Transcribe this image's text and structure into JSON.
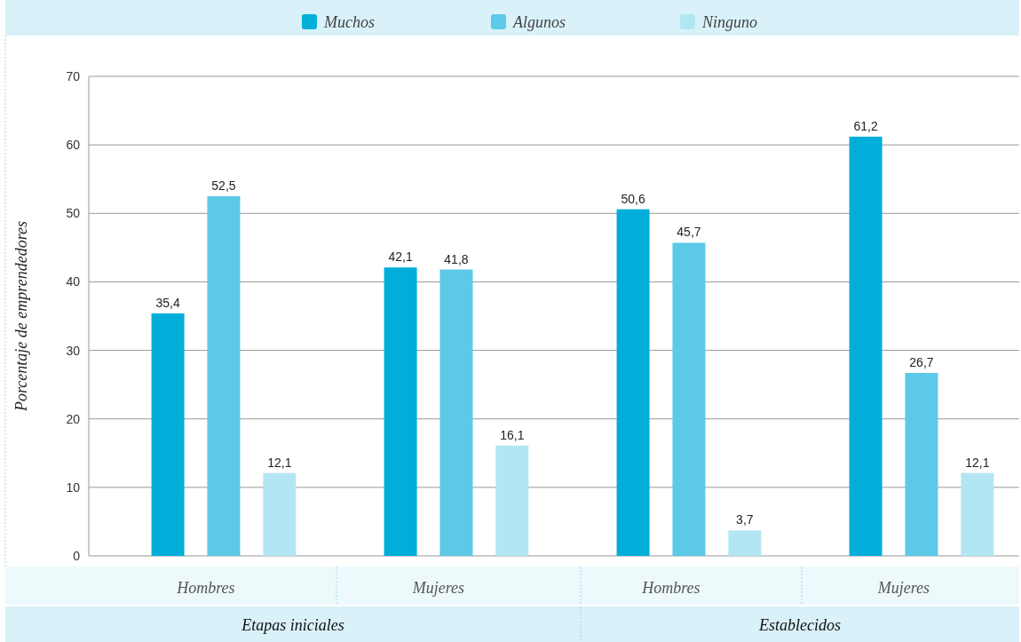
{
  "chart_data": {
    "type": "bar",
    "ylabel": "Porcentaje de emprendedores",
    "categories": [
      "Hombres",
      "Mujeres",
      "Hombres",
      "Mujeres"
    ],
    "series": [
      {
        "name": "Muchos",
        "color": "#00aed9",
        "values": [
          35.4,
          42.1,
          50.6,
          61.2
        ],
        "value_labels": [
          "35,4",
          "42,1",
          "50,6",
          "61,2"
        ]
      },
      {
        "name": "Algunos",
        "color": "#5bc9e7",
        "values": [
          52.5,
          41.8,
          45.7,
          26.7
        ],
        "value_labels": [
          "52,5",
          "41,8",
          "45,7",
          "26,7"
        ]
      },
      {
        "name": "Ninguno",
        "color": "#b3e6f3",
        "values": [
          12.1,
          16.1,
          3.7,
          12.1
        ],
        "value_labels": [
          "12,1",
          "16,1",
          "3,7",
          "12,1"
        ]
      }
    ],
    "annotations": [
      "Etapas iniciales",
      "Establecidos"
    ],
    "ylim": [
      0,
      70
    ],
    "yticks": [
      0,
      10,
      20,
      30,
      40,
      50,
      60,
      70
    ],
    "grid": "y",
    "legend": "top"
  }
}
